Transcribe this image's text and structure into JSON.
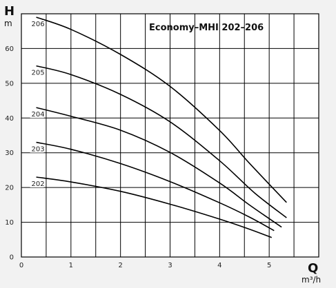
{
  "chart_data": {
    "type": "line",
    "title": "Economy–MHI 202–206",
    "y_axis": {
      "letter": "H",
      "unit": "m"
    },
    "x_axis": {
      "letter": "Q",
      "unit": "m³/h"
    },
    "xlim": [
      0,
      6
    ],
    "ylim": [
      0,
      70
    ],
    "xticks": [
      0,
      1,
      2,
      3,
      4,
      5
    ],
    "yticks": [
      0,
      10,
      20,
      30,
      40,
      50,
      60
    ],
    "grid": true,
    "series": [
      {
        "name": "206",
        "points": [
          [
            0.3,
            69.0
          ],
          [
            1.0,
            65.5
          ],
          [
            2.0,
            58.3
          ],
          [
            3.0,
            49.1
          ],
          [
            4.0,
            36.4
          ],
          [
            4.6,
            27.0
          ],
          [
            5.35,
            15.7
          ]
        ]
      },
      {
        "name": "205",
        "points": [
          [
            0.3,
            55.0
          ],
          [
            1.0,
            52.5
          ],
          [
            2.0,
            46.8
          ],
          [
            3.0,
            38.9
          ],
          [
            4.0,
            27.7
          ],
          [
            4.7,
            18.5
          ],
          [
            5.35,
            11.3
          ]
        ]
      },
      {
        "name": "204",
        "points": [
          [
            0.3,
            43.0
          ],
          [
            1.0,
            40.5
          ],
          [
            2.0,
            36.5
          ],
          [
            3.0,
            30.1
          ],
          [
            4.0,
            21.3
          ],
          [
            4.6,
            15.0
          ],
          [
            5.25,
            8.6
          ]
        ]
      },
      {
        "name": "203",
        "points": [
          [
            0.3,
            33.0
          ],
          [
            1.0,
            31.0
          ],
          [
            2.0,
            26.9
          ],
          [
            3.0,
            21.7
          ],
          [
            4.0,
            15.6
          ],
          [
            4.6,
            11.5
          ],
          [
            5.1,
            7.6
          ]
        ]
      },
      {
        "name": "202",
        "points": [
          [
            0.3,
            23.0
          ],
          [
            1.0,
            21.6
          ],
          [
            2.0,
            18.9
          ],
          [
            3.0,
            15.2
          ],
          [
            4.0,
            10.9
          ],
          [
            4.6,
            8.0
          ],
          [
            5.05,
            5.6
          ]
        ]
      }
    ]
  }
}
